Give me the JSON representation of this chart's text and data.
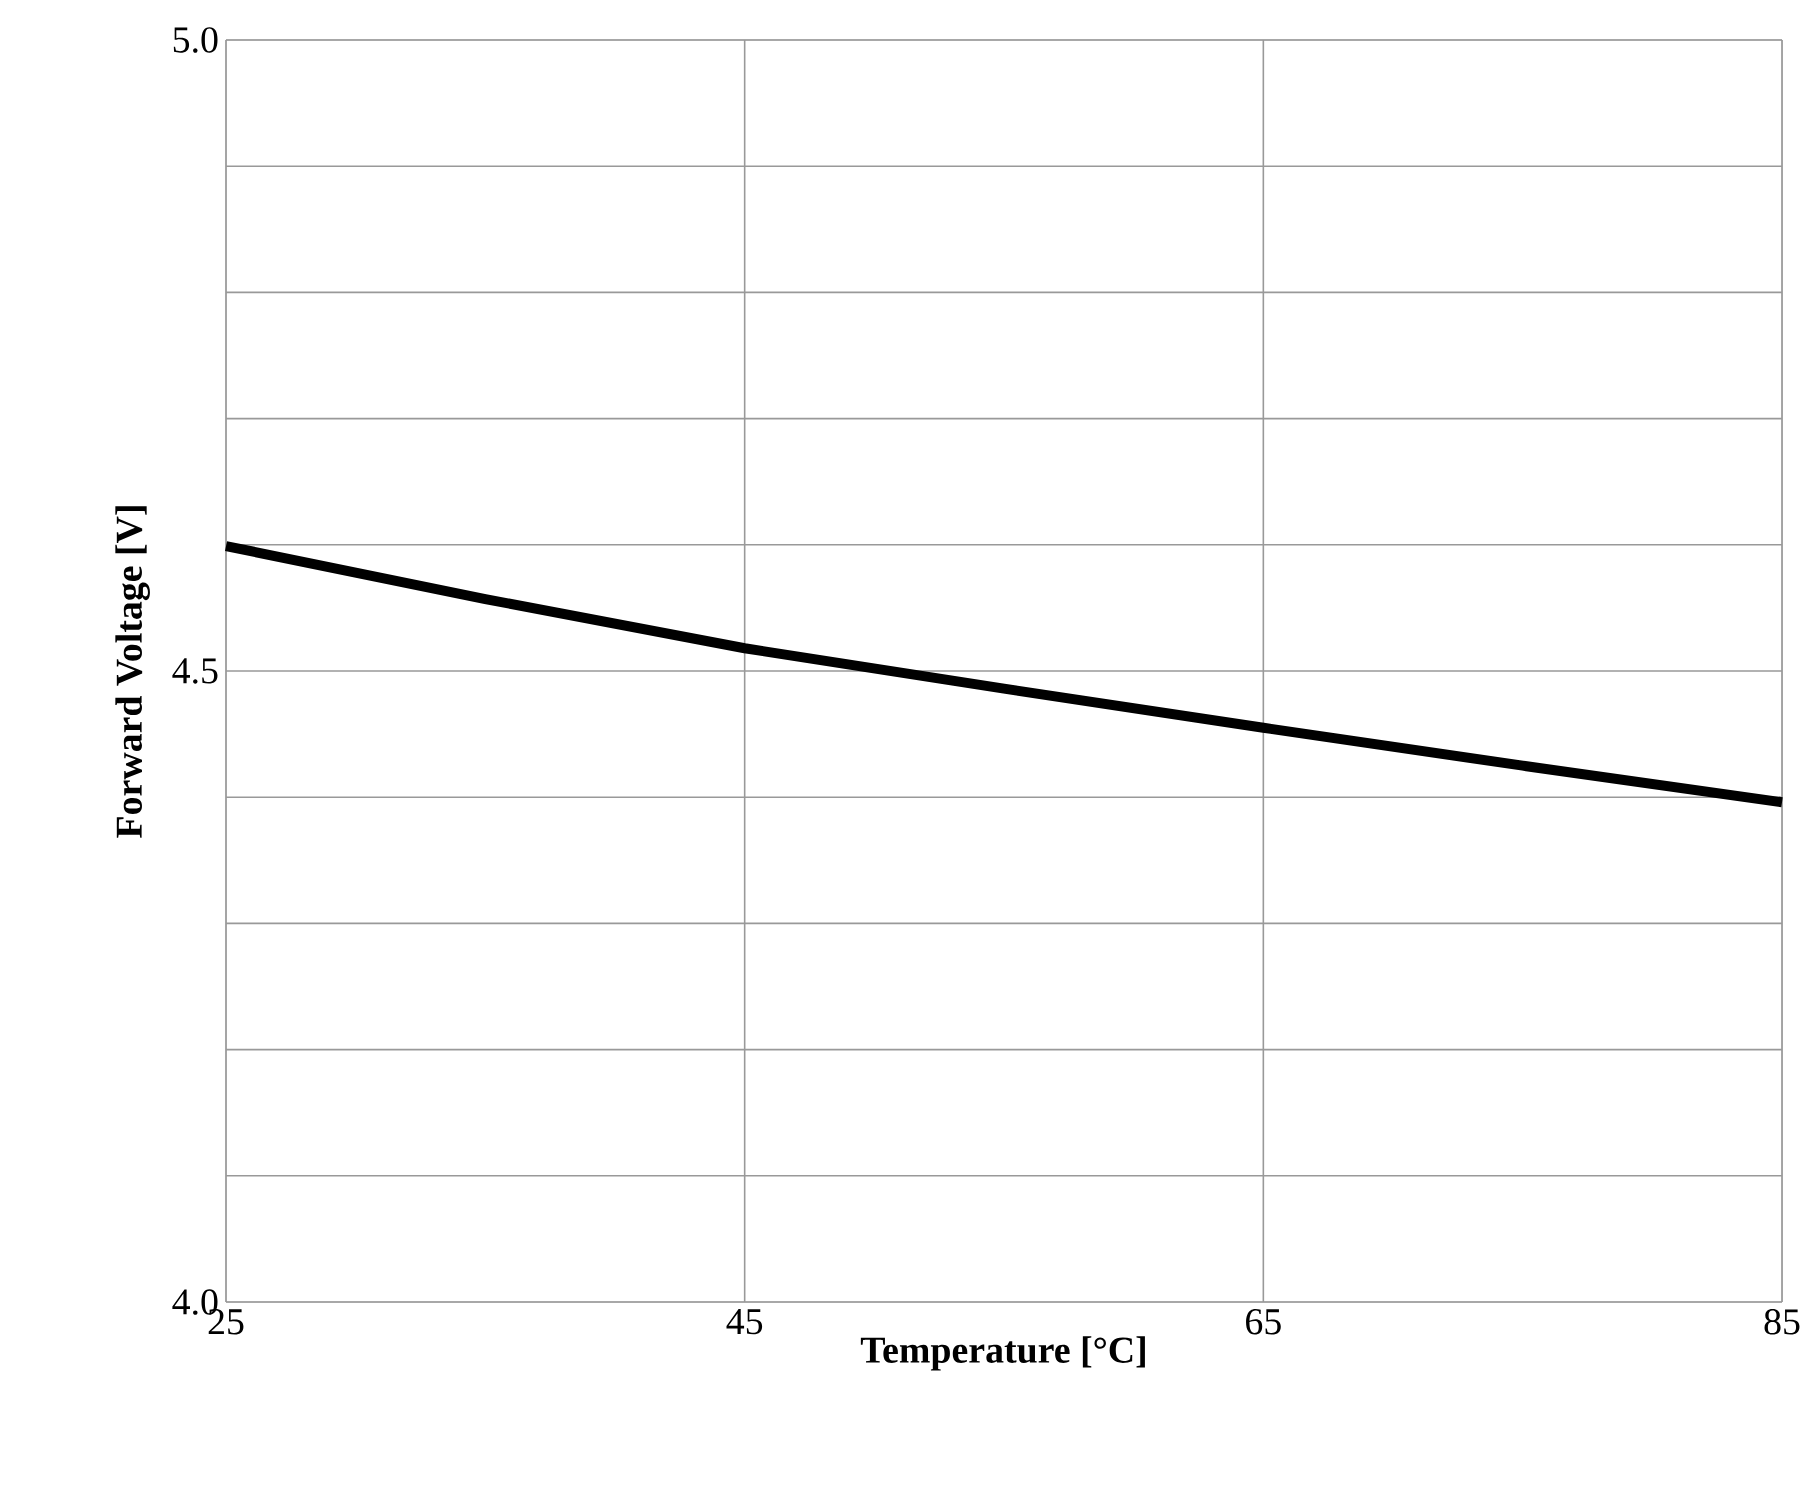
{
  "chart_data": {
    "type": "line",
    "xlabel": "Temperature [°C]",
    "ylabel": "Forward Voltage [V]",
    "x": [
      25,
      35,
      45,
      55,
      65,
      75,
      85
    ],
    "series": [
      {
        "color": "#000000",
        "values": [
          4.599,
          4.557,
          4.518,
          4.486,
          4.455,
          4.425,
          4.396
        ]
      }
    ],
    "xlim": [
      25,
      85
    ],
    "ylim": [
      4.0,
      5.0
    ],
    "xticks": [
      25,
      45,
      65,
      85
    ],
    "yticks": [
      {
        "value": 4,
        "label": "4.0"
      },
      {
        "value": 4.1,
        "label": null
      },
      {
        "value": 4.2,
        "label": null
      },
      {
        "value": 4.3,
        "label": null
      },
      {
        "value": 4.4,
        "label": null
      },
      {
        "value": 4.5,
        "label": "4.5"
      },
      {
        "value": 4.6,
        "label": null
      },
      {
        "value": 4.7,
        "label": null
      },
      {
        "value": 4.8,
        "label": null
      },
      {
        "value": 4.9,
        "label": null
      },
      {
        "value": 5,
        "label": "5.0"
      }
    ],
    "grid": true
  }
}
